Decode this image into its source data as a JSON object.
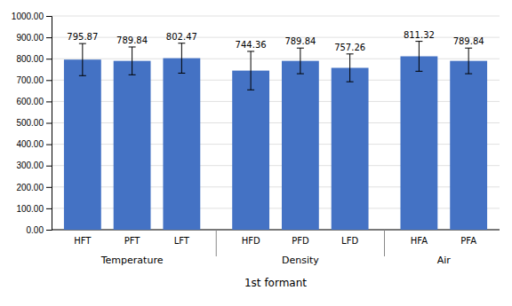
{
  "chart_data": {
    "type": "bar",
    "categories": [
      "HFT",
      "PFT",
      "LFT",
      "HFD",
      "PFD",
      "LFD",
      "HFA",
      "PFA"
    ],
    "values": [
      795.87,
      789.84,
      802.47,
      744.36,
      789.84,
      757.26,
      811.32,
      789.84
    ],
    "errors": [
      75,
      65,
      70,
      90,
      60,
      65,
      70,
      60
    ],
    "color": "#4472C4",
    "xlabel": "1st formant",
    "groups": [
      {
        "name": "Temperature",
        "categories": [
          "HFT",
          "PFT",
          "LFT"
        ]
      },
      {
        "name": "Density",
        "categories": [
          "HFD",
          "PFD",
          "LFD"
        ]
      },
      {
        "name": "Air",
        "categories": [
          "HFA",
          "PFA"
        ]
      }
    ],
    "ylim": [
      0,
      1000
    ],
    "yticks": [
      {
        "value": 0,
        "label": "0.00"
      },
      {
        "value": 100,
        "label": "100.00"
      },
      {
        "value": 200,
        "label": "200.00"
      },
      {
        "value": 300,
        "label": "300.00"
      },
      {
        "value": 400,
        "label": "400.00"
      },
      {
        "value": 500,
        "label": "500.00"
      },
      {
        "value": 600,
        "label": "600.00"
      },
      {
        "value": 700,
        "label": "700.00"
      },
      {
        "value": 800,
        "label": "800.00"
      },
      {
        "value": 900,
        "label": "900.00"
      },
      {
        "value": 1000,
        "label": "1000.00"
      }
    ],
    "grid": true,
    "data_labels": true
  }
}
